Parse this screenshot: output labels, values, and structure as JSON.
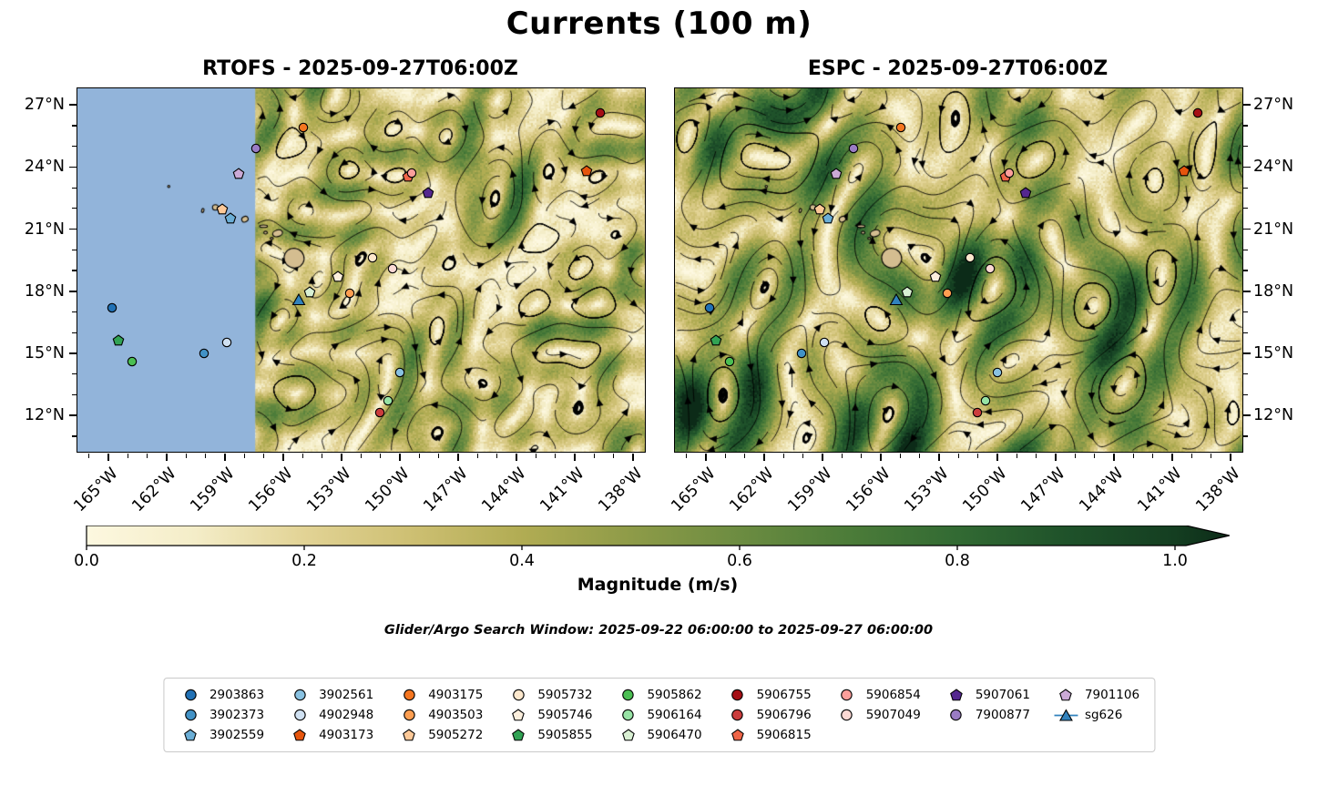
{
  "header": {
    "title": "Currents (100 m)"
  },
  "axes": {
    "lat_ticks": [
      "27°N",
      "24°N",
      "21°N",
      "18°N",
      "15°N",
      "12°N"
    ],
    "lon_ticks": [
      "165°W",
      "162°W",
      "159°W",
      "156°W",
      "153°W",
      "150°W",
      "147°W",
      "144°W",
      "141°W",
      "138°W"
    ]
  },
  "search_window": {
    "text": "Glider/Argo Search Window: 2025-09-22 06:00:00 to 2025-09-27 06:00:00",
    "start": "2025-09-22 06:00:00",
    "end": "2025-09-27 06:00:00"
  },
  "legend": {
    "ncol": 9
  },
  "colors": {
    "no_data_mask": "#92b4da",
    "island_fill": "#d4bd90",
    "coastline": "#000000",
    "streamline": "#000000",
    "legend_border": "#c9c9c9"
  },
  "chart_data": {
    "type": "streamline-map",
    "title": "Currents (100 m)",
    "panels": [
      {
        "model": "RTOFS",
        "title": "RTOFS - 2025-09-27T06:00Z",
        "timestamp": "2025-09-27T06:00Z",
        "masked_lon_max": -157.45
      },
      {
        "model": "ESPC",
        "title": "ESPC - 2025-09-27T06:00Z",
        "timestamp": "2025-09-27T06:00Z",
        "masked_lon_max": null
      }
    ],
    "lon_range": [
      -166.6,
      -137.4
    ],
    "lat_range": [
      10.25,
      27.8
    ],
    "lon_ticks_deg": [
      -165,
      -162,
      -159,
      -156,
      -153,
      -150,
      -147,
      -144,
      -141,
      -138
    ],
    "lat_ticks_deg": [
      27,
      24,
      21,
      18,
      15,
      12
    ],
    "colorbar": {
      "label": "Magnitude (m/s)",
      "ticks": [
        0,
        0.2,
        0.4,
        0.6,
        0.8,
        1.0
      ],
      "tick_labels": [
        "0.0",
        "0.2",
        "0.4",
        "0.6",
        "0.8",
        "1.0"
      ],
      "extend": "max",
      "colors": [
        [
          0,
          "#fdf8e0"
        ],
        [
          0.1,
          "#f4edc8"
        ],
        [
          0.2,
          "#e2d395"
        ],
        [
          0.3,
          "#cdbf72"
        ],
        [
          0.4,
          "#b1ac53"
        ],
        [
          0.5,
          "#8e9b48"
        ],
        [
          0.6,
          "#6c8c41"
        ],
        [
          0.7,
          "#4c7c39"
        ],
        [
          0.8,
          "#326a33"
        ],
        [
          0.9,
          "#1f522a"
        ],
        [
          1.0,
          "#143e21"
        ],
        [
          1.05,
          "#0c2b18"
        ]
      ]
    },
    "islands": [
      {
        "name": "hawaii",
        "lon": -155.45,
        "lat": 19.6,
        "rx": 0.52,
        "ry": 0.47,
        "rot": 0.5
      },
      {
        "name": "maui",
        "lon": -156.3,
        "lat": 20.8,
        "rx": 0.26,
        "ry": 0.16,
        "rot": -0.3
      },
      {
        "name": "kahoolawe",
        "lon": -156.6,
        "lat": 20.55,
        "rx": 0.08,
        "ry": 0.05,
        "rot": 0
      },
      {
        "name": "lanai",
        "lon": -156.92,
        "lat": 20.83,
        "rx": 0.09,
        "ry": 0.07,
        "rot": 0
      },
      {
        "name": "molokai",
        "lon": -157.02,
        "lat": 21.14,
        "rx": 0.2,
        "ry": 0.06,
        "rot": 0
      },
      {
        "name": "oahu",
        "lon": -157.98,
        "lat": 21.48,
        "rx": 0.17,
        "ry": 0.13,
        "rot": -0.5
      },
      {
        "name": "kauai",
        "lon": -159.5,
        "lat": 22.05,
        "rx": 0.15,
        "ry": 0.13,
        "rot": 0
      },
      {
        "name": "niihau",
        "lon": -160.15,
        "lat": 21.9,
        "rx": 0.06,
        "ry": 0.1,
        "rot": 0.3
      },
      {
        "name": "nihoa",
        "lon": -161.9,
        "lat": 23.06,
        "rx": 0.03,
        "ry": 0.03,
        "rot": 0
      }
    ],
    "floats": [
      {
        "label": "2903863",
        "marker": "circle",
        "color": "#2171b5",
        "lon": -164.8,
        "lat": 17.2
      },
      {
        "label": "3902373",
        "marker": "circle",
        "color": "#4292c6",
        "lon": -160.1,
        "lat": 15.0
      },
      {
        "label": "3902559",
        "marker": "pentagon",
        "color": "#6baed6",
        "lon": -158.75,
        "lat": 21.5
      },
      {
        "label": "3902561",
        "marker": "circle",
        "color": "#89c2e2",
        "lon": -150.0,
        "lat": 14.1
      },
      {
        "label": "4902948",
        "marker": "circle",
        "color": "#d0e1f2",
        "lon": -158.9,
        "lat": 15.55
      },
      {
        "label": "4903173",
        "marker": "pentagon",
        "color": "#e6550d",
        "lon": -140.4,
        "lat": 23.8
      },
      {
        "label": "4903175",
        "marker": "circle",
        "color": "#f57620",
        "lon": -155.0,
        "lat": 25.9
      },
      {
        "label": "4903503",
        "marker": "circle",
        "color": "#fd9e51",
        "lon": -152.6,
        "lat": 17.9
      },
      {
        "label": "5905272",
        "marker": "pentagon",
        "color": "#fdc998",
        "lon": -159.15,
        "lat": 21.95
      },
      {
        "label": "5905732",
        "marker": "circle",
        "color": "#fde8cd",
        "lon": -151.4,
        "lat": 19.6
      },
      {
        "label": "5905746",
        "marker": "pentagon",
        "color": "#fcefdd",
        "lon": -153.2,
        "lat": 18.7
      },
      {
        "label": "5905855",
        "marker": "pentagon",
        "color": "#31a354",
        "lon": -164.5,
        "lat": 15.6
      },
      {
        "label": "5905862",
        "marker": "circle",
        "color": "#4bbf53",
        "lon": -163.8,
        "lat": 14.6
      },
      {
        "label": "5906164",
        "marker": "circle",
        "color": "#97e3a5",
        "lon": -150.6,
        "lat": 12.7
      },
      {
        "label": "5906470",
        "marker": "pentagon",
        "color": "#d9f0d3",
        "lon": -154.65,
        "lat": 17.95
      },
      {
        "label": "5906755",
        "marker": "circle",
        "color": "#a50f15",
        "lon": -139.7,
        "lat": 26.6
      },
      {
        "label": "5906796",
        "marker": "circle",
        "color": "#cb3d3d",
        "lon": -151.05,
        "lat": 12.15
      },
      {
        "label": "5906815",
        "marker": "pentagon",
        "color": "#ef6548",
        "lon": -149.6,
        "lat": 23.55
      },
      {
        "label": "5906854",
        "marker": "circle",
        "color": "#fc9f9b",
        "lon": -149.4,
        "lat": 23.7
      },
      {
        "label": "5907049",
        "marker": "circle",
        "color": "#fcd9d4",
        "lon": -150.4,
        "lat": 19.1
      },
      {
        "label": "5907061",
        "marker": "pentagon",
        "color": "#54278f",
        "lon": -148.55,
        "lat": 22.75
      },
      {
        "label": "7900877",
        "marker": "circle",
        "color": "#9a7cc4",
        "lon": -157.4,
        "lat": 24.9
      },
      {
        "label": "7901106",
        "marker": "pentagon",
        "color": "#cbaad6",
        "lon": -158.3,
        "lat": 23.65
      },
      {
        "label": "sg626",
        "marker": "glider-triangle",
        "color": "#3182bd",
        "lon": -155.2,
        "lat": 17.6
      }
    ]
  }
}
